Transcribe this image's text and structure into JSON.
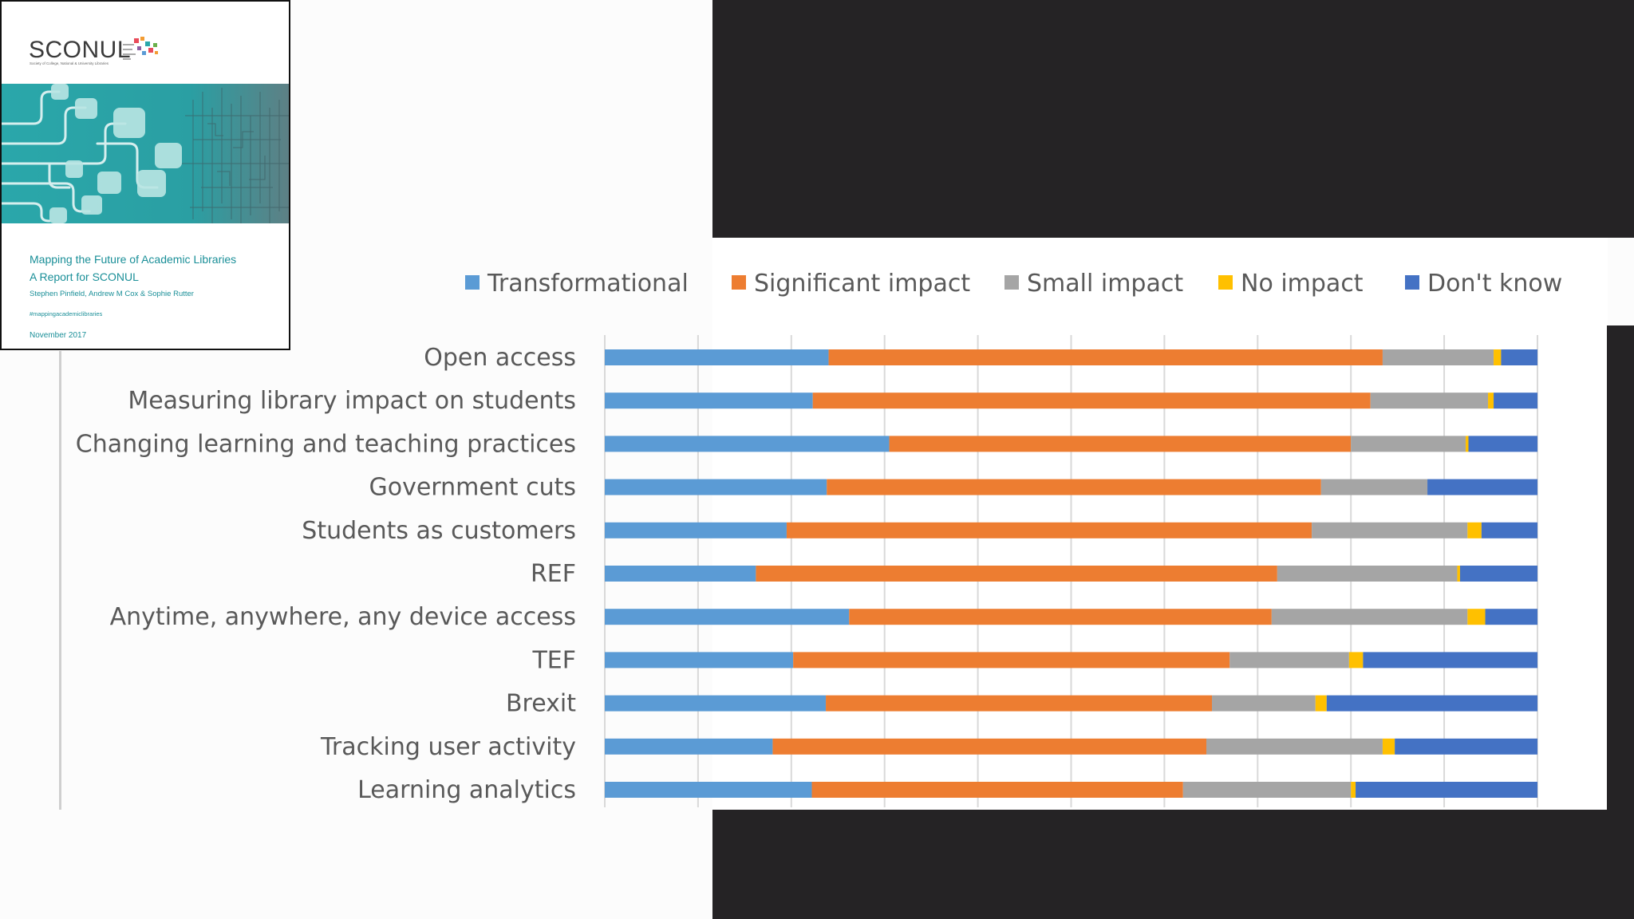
{
  "cover": {
    "logo_text": "SCONUL",
    "logo_subtitle": "Society of College, National & University Libraries",
    "title_line1": "Mapping the Future of Academic Libraries",
    "title_line2": "A Report for SCONUL",
    "authors": "Stephen Pinfield, Andrew M Cox & Sophie Rutter",
    "hashtag": "#mappingacademiclibraries",
    "date": "November 2017",
    "colors": {
      "teal": "#2aa7aa",
      "teal_dark": "#1a8f98",
      "title_text": "#1a8f98"
    }
  },
  "chart_data": {
    "type": "bar",
    "orientation": "horizontal",
    "stacked": true,
    "normalized": true,
    "grid": true,
    "legend_position": "top",
    "categories": [
      "Open access",
      "Measuring library impact on students",
      "Changing learning and teaching practices",
      "Government cuts",
      "Students as customers",
      "REF",
      "Anytime, anywhere, any device access",
      "TEF",
      "Brexit",
      "Tracking user activity",
      "Learning analytics"
    ],
    "series": [
      {
        "name": "Transformational",
        "color": "#5b9bd5",
        "values": [
          24,
          22.3,
          30.5,
          23.8,
          19.5,
          16.2,
          26.2,
          20.2,
          23.7,
          18,
          22.2
        ]
      },
      {
        "name": "Significant impact",
        "color": "#ed7d31",
        "values": [
          59.4,
          59.8,
          49.5,
          53,
          56.3,
          55.9,
          45.3,
          46.8,
          41.4,
          46.5,
          39.8
        ]
      },
      {
        "name": "Small impact",
        "color": "#a5a5a5",
        "values": [
          11.9,
          12.6,
          12.3,
          11.4,
          16.7,
          19.3,
          21,
          12.8,
          11.1,
          18.9,
          18
        ]
      },
      {
        "name": "No impact",
        "color": "#ffc000",
        "values": [
          0.8,
          0.6,
          0.3,
          0,
          1.5,
          0.3,
          1.9,
          1.5,
          1.2,
          1.3,
          0.5
        ]
      },
      {
        "name": "Don't know",
        "color": "#4472c4",
        "values": [
          3.9,
          4.7,
          7.4,
          11.8,
          6,
          8.3,
          5.6,
          18.7,
          22.6,
          15.3,
          19.5
        ]
      }
    ],
    "xlim": [
      0,
      100
    ],
    "title": "",
    "xlabel": "",
    "ylabel": ""
  }
}
